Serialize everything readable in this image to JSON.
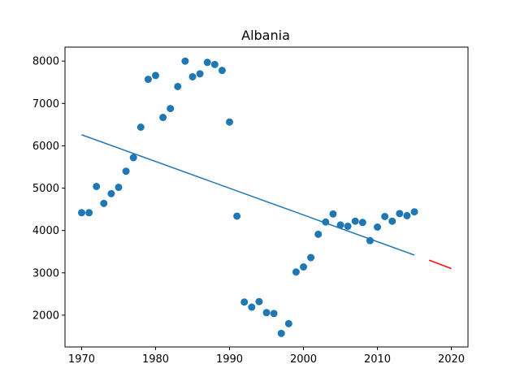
{
  "chart_data": {
    "type": "scatter",
    "title": "Albania",
    "xlabel": "",
    "ylabel": "",
    "xlim": [
      1967.75,
      2022.25
    ],
    "ylim": [
      1250,
      8330
    ],
    "xticks": [
      1970,
      1980,
      1990,
      2000,
      2010,
      2020
    ],
    "yticks": [
      2000,
      3000,
      4000,
      5000,
      6000,
      7000,
      8000
    ],
    "grid": false,
    "legend": "none",
    "colors": {
      "points": "#1f77b4",
      "fit_line": "#1f77b4",
      "forecast_line": "#ff0000"
    },
    "series": [
      {
        "type": "scatter",
        "x": [
          1970,
          1971,
          1972,
          1973,
          1974,
          1975,
          1976,
          1977,
          1978,
          1979,
          1980,
          1981,
          1982,
          1983,
          1984,
          1985,
          1986,
          1987,
          1988,
          1989,
          1990,
          1991,
          1992,
          1993,
          1994,
          1995,
          1996,
          1997,
          1998,
          1999,
          2000,
          2001,
          2002,
          2003,
          2004,
          2005,
          2006,
          2007,
          2008,
          2009,
          2010,
          2011,
          2012,
          2013,
          2014,
          2015
        ],
        "y": [
          4420,
          4420,
          5040,
          4640,
          4870,
          5020,
          5400,
          5720,
          6440,
          7570,
          7660,
          6670,
          6880,
          7400,
          8000,
          7630,
          7700,
          7970,
          7920,
          7780,
          6560,
          4340,
          2310,
          2190,
          2320,
          2060,
          2040,
          1570,
          1800,
          3020,
          3140,
          3360,
          3910,
          4200,
          4390,
          4130,
          4100,
          4220,
          4190,
          3760,
          4080,
          4330,
          4220,
          4400,
          4350,
          4440
        ]
      },
      {
        "type": "line",
        "x": [
          1970,
          2015
        ],
        "y": [
          6260,
          3420
        ]
      },
      {
        "type": "line",
        "x": [
          2017,
          2020
        ],
        "y": [
          3300,
          3100
        ]
      }
    ]
  }
}
